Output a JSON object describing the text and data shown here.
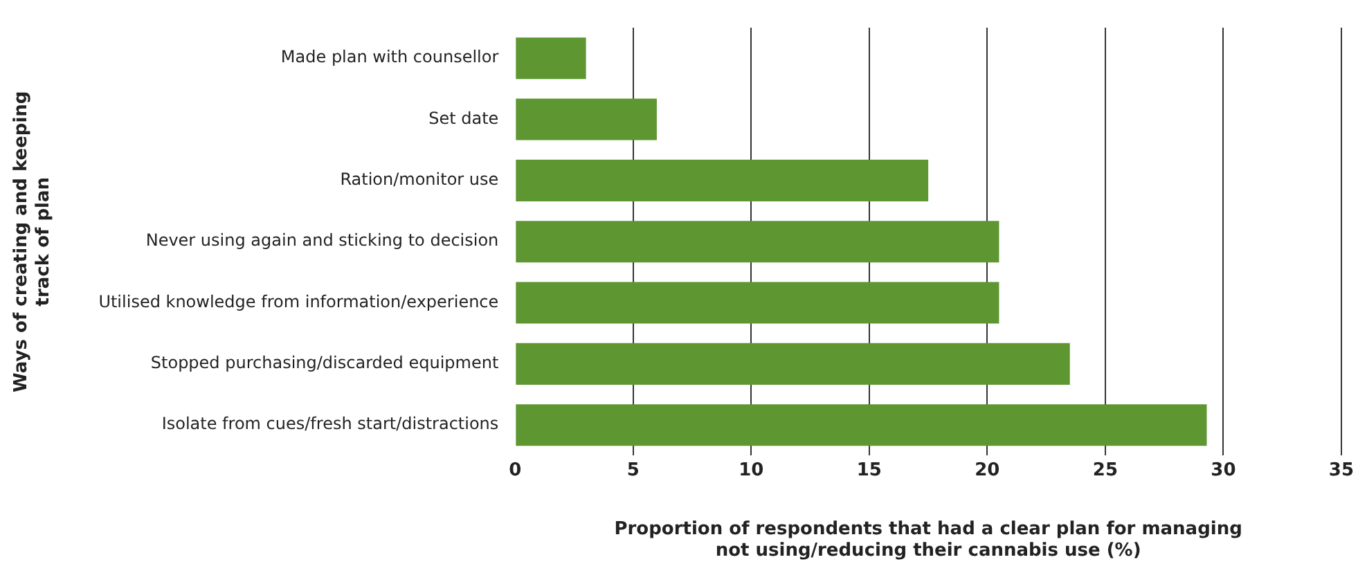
{
  "chart_data": {
    "type": "bar",
    "orientation": "horizontal",
    "xlabel": "Proportion of respondents that had a clear plan for managing\nnot using/reducing their cannabis use (%)",
    "ylabel": "Ways of creating and keeping\ntrack of plan",
    "categories": [
      "Made plan with counsellor",
      "Set date",
      "Ration/monitor use",
      "Never using again and sticking to decision",
      "Utilised knowledge from information/experience",
      "Stopped purchasing/discarded equipment",
      "Isolate from cues/fresh start/distractions"
    ],
    "values": [
      3,
      6,
      17.5,
      20.5,
      20.5,
      23.5,
      29.3
    ],
    "color": "#5e9732",
    "xlim": [
      0,
      35
    ],
    "xticks": [
      0,
      5,
      10,
      15,
      20,
      25,
      30,
      35
    ],
    "grid": "x",
    "legend": false
  }
}
